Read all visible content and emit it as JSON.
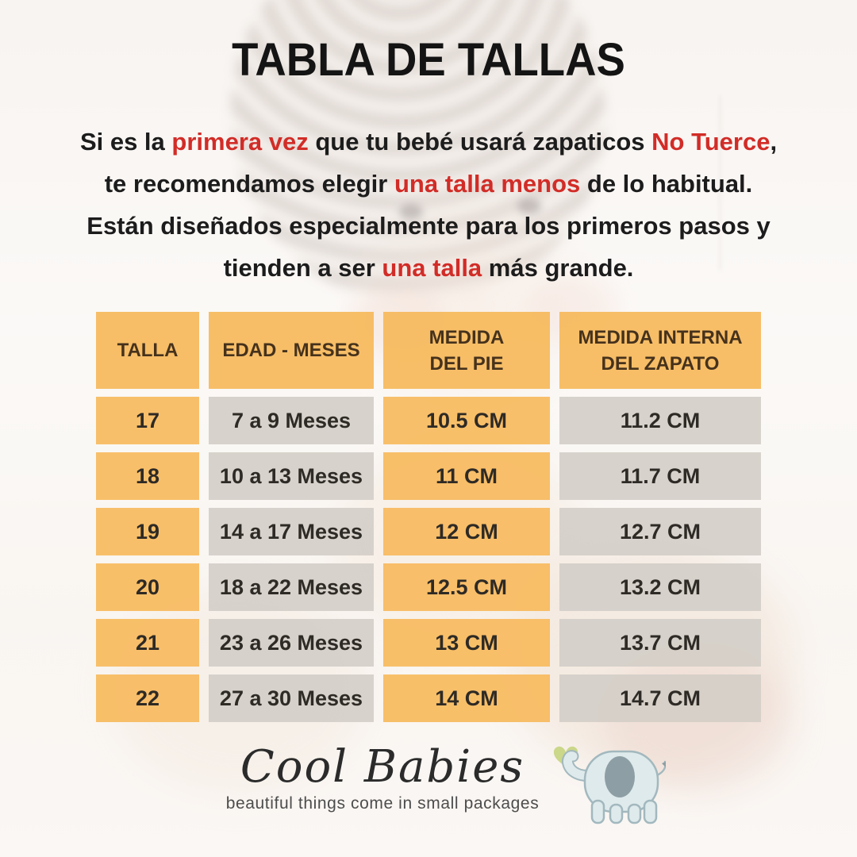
{
  "title": "TABLA DE TALLAS",
  "intro": {
    "lines": [
      {
        "segments": [
          {
            "text": "Si es la ",
            "color": "black"
          },
          {
            "text": "primera vez",
            "color": "red"
          },
          {
            "text": " que tu bebé usará zapaticos ",
            "color": "black"
          },
          {
            "text": "No Tuerce",
            "color": "red"
          },
          {
            "text": ",",
            "color": "black"
          }
        ]
      },
      {
        "segments": [
          {
            "text": "te recomendamos elegir ",
            "color": "black"
          },
          {
            "text": "una talla menos",
            "color": "red"
          },
          {
            "text": " de lo habitual.",
            "color": "black"
          }
        ]
      },
      {
        "segments": [
          {
            "text": "Están diseñados especialmente para los primeros pasos y",
            "color": "black"
          }
        ]
      },
      {
        "segments": [
          {
            "text": "tienden a ser ",
            "color": "black"
          },
          {
            "text": "una talla",
            "color": "red"
          },
          {
            "text": " más grande.",
            "color": "black"
          }
        ]
      }
    ]
  },
  "table": {
    "headers": [
      "TALLA",
      "EDAD - MESES",
      "MEDIDA\nDEL PIE",
      "MEDIDA INTERNA\nDEL ZAPATO"
    ],
    "rows": [
      [
        "17",
        "7 a 9 Meses",
        "10.5 CM",
        "11.2 CM"
      ],
      [
        "18",
        "10 a 13 Meses",
        "11 CM",
        "11.7 CM"
      ],
      [
        "19",
        "14 a 17 Meses",
        "12 CM",
        "12.7 CM"
      ],
      [
        "20",
        "18 a 22 Meses",
        "12.5 CM",
        "13.2 CM"
      ],
      [
        "21",
        "23 a 26 Meses",
        "13 CM",
        "13.7 CM"
      ],
      [
        "22",
        "27 a 30 Meses",
        "14 CM",
        "14.7 CM"
      ]
    ]
  },
  "brand": {
    "name": "Cool Babies",
    "tagline": "beautiful things come in small packages",
    "logo_icon": "elephant-with-heart-icon"
  },
  "colors": {
    "accent_orange": "#f7ba5f",
    "cell_gray": "#d1cdc6",
    "highlight_red": "#d22c27",
    "text_dark": "#1c1c1c",
    "header_text": "#46321c",
    "elephant_body": "#dfeaec",
    "elephant_ear": "#8d9fa4",
    "heart_green": "#cbd789"
  }
}
